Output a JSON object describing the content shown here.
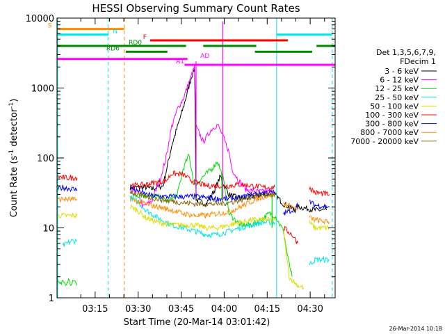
{
  "chart_data": {
    "type": "line",
    "title": "HESSI Observing Summary Count Rates",
    "xlabel": "Start Time (20-Mar-14 03:01:42)",
    "ylabel_main": "Count Rate (s",
    "ylabel_sup1": "-1",
    "ylabel_mid": " detector",
    "ylabel_sup2": "-1",
    "ylabel_end": ")",
    "yscale": "log",
    "ylim": [
      1,
      10000
    ],
    "xlim_minutes": [
      0,
      97
    ],
    "x_ticks": [
      {
        "t": 13.3,
        "label": "03:15"
      },
      {
        "t": 28.3,
        "label": "03:30"
      },
      {
        "t": 43.3,
        "label": "03:45"
      },
      {
        "t": 58.3,
        "label": "04:00"
      },
      {
        "t": 73.3,
        "label": "04:15"
      },
      {
        "t": 88.3,
        "label": "04:30"
      }
    ],
    "y_ticks": [
      {
        "v": 1,
        "label": "1"
      },
      {
        "v": 10,
        "label": "10"
      },
      {
        "v": 100,
        "label": "100"
      },
      {
        "v": 1000,
        "label": "1000"
      },
      {
        "v": 10000,
        "label": "10000"
      }
    ],
    "legend": {
      "header1": "Det 1,3,5,6,7,9,",
      "header2": "FDecim 1",
      "entries": [
        {
          "label": "3 - 6 keV",
          "color": "#000000"
        },
        {
          "label": "6 - 12 keV",
          "color": "#ff00ff"
        },
        {
          "label": "12 - 25 keV",
          "color": "#00dd00"
        },
        {
          "label": "25 - 50 keV",
          "color": "#00e5e5"
        },
        {
          "label": "50 - 100 keV",
          "color": "#dddd00"
        },
        {
          "label": "100 - 300 keV",
          "color": "#ff0000"
        },
        {
          "label": "300 - 800 keV",
          "color": "#0000ff"
        },
        {
          "label": "800 - 7000 keV",
          "color": "#ff8c00"
        },
        {
          "label": "7000 - 20000 keV",
          "color": "#8b6914"
        }
      ]
    },
    "series": [
      {
        "name": "3 - 6 keV",
        "color": "#000000",
        "segments": [
          [
            [
              25.5,
              38
            ],
            [
              31,
              38
            ],
            [
              33,
              36
            ],
            [
              37,
              40
            ],
            [
              40,
              150
            ],
            [
              44,
              520
            ],
            [
              47,
              1500
            ],
            [
              48,
              1900
            ],
            [
              48.5,
              25
            ],
            [
              52,
              22
            ],
            [
              55,
              35
            ],
            [
              57,
              55
            ],
            [
              58,
              42
            ],
            [
              60,
              30
            ],
            [
              64,
              26
            ],
            [
              68,
              28
            ],
            [
              72,
              30
            ],
            [
              76,
              30
            ],
            [
              79,
              22
            ],
            [
              83,
              18
            ],
            [
              84,
              20
            ],
            [
              90,
              18
            ],
            [
              94,
              18
            ]
          ]
        ]
      },
      {
        "name": "6 - 12 keV",
        "color": "#ff00ff",
        "segments": [
          [
            [
              25.5,
              33
            ],
            [
              28,
              33
            ],
            [
              30,
              20
            ],
            [
              33,
              24
            ],
            [
              36,
              50
            ],
            [
              38,
              100
            ],
            [
              40,
              280
            ],
            [
              42,
              500
            ],
            [
              44,
              700
            ],
            [
              46,
              1200
            ],
            [
              48,
              2000
            ],
            [
              48.5,
              280
            ],
            [
              51,
              170
            ],
            [
              54,
              260
            ],
            [
              56,
              300
            ],
            [
              58,
              200
            ],
            [
              60,
              120
            ],
            [
              61,
              70
            ],
            [
              63,
              50
            ],
            [
              66,
              35
            ],
            [
              70,
              33
            ],
            [
              74,
              33
            ],
            [
              76,
              32
            ]
          ]
        ]
      },
      {
        "name": "12 - 25 keV",
        "color": "#00dd00",
        "segments": [
          [
            [
              0,
              1.8
            ],
            [
              1,
              1.5
            ],
            [
              2,
              1.8
            ],
            [
              3,
              1.5
            ],
            [
              4,
              1.8
            ],
            [
              5,
              1.5
            ],
            [
              6,
              1.8
            ],
            [
              7,
              1.5
            ]
          ],
          [
            [
              25.5,
              28
            ],
            [
              30,
              30
            ],
            [
              35,
              28
            ],
            [
              39,
              24
            ],
            [
              42,
              30
            ],
            [
              44,
              70
            ],
            [
              46,
              110
            ],
            [
              48,
              40
            ],
            [
              50,
              50
            ],
            [
              54,
              70
            ],
            [
              56,
              90
            ],
            [
              58,
              50
            ],
            [
              60,
              16
            ],
            [
              64,
              11
            ],
            [
              68,
              11
            ],
            [
              71,
              13
            ],
            [
              74,
              16
            ],
            [
              76,
              15
            ],
            [
              79,
              9
            ],
            [
              80,
              5
            ],
            [
              81,
              3
            ],
            [
              82,
              2
            ]
          ]
        ]
      },
      {
        "name": "25 - 50 keV",
        "color": "#00e5e5",
        "segments": [
          [
            [
              2,
              5.5
            ],
            [
              5,
              6.5
            ],
            [
              7,
              6.5
            ]
          ],
          [
            [
              25.5,
              27
            ],
            [
              28,
              24
            ],
            [
              31,
              18
            ],
            [
              35,
              14
            ],
            [
              40,
              11
            ],
            [
              44,
              10
            ],
            [
              48,
              9
            ],
            [
              52,
              8
            ],
            [
              56,
              8
            ],
            [
              60,
              9
            ],
            [
              64,
              10
            ],
            [
              68,
              11
            ],
            [
              72,
              12
            ],
            [
              74,
              12
            ],
            [
              76,
              12
            ]
          ],
          [
            [
              88,
              3
            ],
            [
              90,
              3.5
            ],
            [
              95,
              3.5
            ]
          ]
        ]
      },
      {
        "name": "50 - 100 keV",
        "color": "#dddd00",
        "segments": [
          [
            [
              0,
              15
            ],
            [
              2,
              15
            ],
            [
              7,
              15
            ]
          ],
          [
            [
              25.5,
              20
            ],
            [
              28,
              18
            ],
            [
              31,
              14
            ],
            [
              35,
              12
            ],
            [
              40,
              11
            ],
            [
              44,
              11
            ],
            [
              48,
              11
            ],
            [
              52,
              10
            ],
            [
              56,
              10
            ],
            [
              60,
              11
            ],
            [
              64,
              12
            ],
            [
              68,
              13
            ],
            [
              72,
              13
            ],
            [
              76,
              13
            ]
          ],
          [
            [
              79,
              9
            ],
            [
              80,
              4
            ],
            [
              81,
              2
            ],
            [
              82,
              1.8
            ],
            [
              84,
              1.5
            ],
            [
              86,
              1.4
            ]
          ],
          [
            [
              88,
              12
            ],
            [
              90,
              10
            ],
            [
              95,
              10
            ]
          ]
        ]
      },
      {
        "name": "100 - 300 keV",
        "color": "#ff0000",
        "segments": [
          [
            [
              0,
              55
            ],
            [
              2,
              52
            ],
            [
              7,
              52
            ]
          ],
          [
            [
              25.5,
              42
            ],
            [
              28,
              40
            ],
            [
              31,
              42
            ],
            [
              35,
              45
            ],
            [
              38,
              47
            ],
            [
              40,
              60
            ],
            [
              44,
              58
            ],
            [
              46,
              50
            ],
            [
              48,
              45
            ],
            [
              52,
              40
            ],
            [
              56,
              40
            ],
            [
              60,
              40
            ],
            [
              64,
              42
            ],
            [
              68,
              40
            ],
            [
              72,
              38
            ],
            [
              76,
              38
            ]
          ],
          [
            [
              79,
              10
            ],
            [
              82,
              8
            ],
            [
              84,
              6
            ]
          ],
          [
            [
              88,
              38
            ],
            [
              90,
              32
            ],
            [
              95,
              30
            ]
          ]
        ]
      },
      {
        "name": "300 - 800 keV",
        "color": "#0000ff",
        "segments": [
          [
            [
              0,
              35
            ],
            [
              2,
              38
            ],
            [
              7,
              35
            ]
          ],
          [
            [
              25.5,
              38
            ],
            [
              28,
              34
            ],
            [
              31,
              30
            ],
            [
              35,
              28
            ],
            [
              40,
              28
            ],
            [
              44,
              28
            ],
            [
              48,
              28
            ],
            [
              52,
              27
            ],
            [
              56,
              26
            ],
            [
              60,
              26
            ],
            [
              64,
              27
            ],
            [
              68,
              30
            ],
            [
              72,
              32
            ],
            [
              76,
              32
            ]
          ],
          [
            [
              79,
              16
            ],
            [
              82,
              18
            ],
            [
              84,
              21
            ]
          ],
          [
            [
              88,
              24
            ],
            [
              90,
              21
            ],
            [
              95,
              20
            ]
          ]
        ]
      },
      {
        "name": "800 - 7000 keV",
        "color": "#ff8c00",
        "segments": [
          [
            [
              0,
              25
            ],
            [
              2,
              26
            ],
            [
              7,
              25
            ]
          ],
          [
            [
              25.5,
              26
            ],
            [
              28,
              24
            ],
            [
              31,
              22
            ],
            [
              35,
              20
            ],
            [
              40,
              18
            ],
            [
              44,
              16
            ],
            [
              48,
              15
            ],
            [
              52,
              15
            ],
            [
              56,
              16
            ],
            [
              60,
              17
            ],
            [
              64,
              20
            ],
            [
              68,
              24
            ],
            [
              72,
              28
            ],
            [
              76,
              30
            ]
          ],
          [
            [
              79,
              22
            ],
            [
              82,
              20
            ],
            [
              84,
              18
            ]
          ],
          [
            [
              88,
              14
            ],
            [
              90,
              13
            ],
            [
              95,
              12
            ]
          ]
        ]
      },
      {
        "name": "7000 - 20000 keV",
        "color": "#8b6914",
        "segments": [
          [
            [
              25.5,
              33
            ],
            [
              28,
              30
            ],
            [
              31,
              28
            ],
            [
              35,
              26
            ],
            [
              40,
              24
            ],
            [
              44,
              23
            ],
            [
              48,
              22
            ],
            [
              52,
              22
            ],
            [
              56,
              22
            ],
            [
              60,
              23
            ],
            [
              64,
              25
            ],
            [
              68,
              28
            ],
            [
              72,
              30
            ],
            [
              76,
              30
            ]
          ]
        ]
      }
    ],
    "spikes": [
      {
        "t": 48.5,
        "color": "#ff00ff",
        "from": 30,
        "to": 2400
      },
      {
        "t": 57.8,
        "color": "#ff00ff",
        "from": 25,
        "to": 9000
      },
      {
        "t": 57.5,
        "color": "#00dd00",
        "from": 25,
        "to": 60
      },
      {
        "t": 75,
        "color": "#00dd00",
        "from": 10,
        "to": 30
      }
    ],
    "vlines": [
      {
        "t": 0.2,
        "color": "#00e5e5",
        "dash": false
      },
      {
        "t": 17.8,
        "color": "#00e5e5",
        "dash": true
      },
      {
        "t": 23.5,
        "color": "#ff8c00",
        "dash": true
      },
      {
        "t": 76.6,
        "color": "#00e5e5",
        "dash": false
      },
      {
        "t": 96,
        "color": "#00e5e5",
        "dash": true
      }
    ],
    "flag_bars": [
      {
        "label": "S",
        "color": "#ff8c00",
        "level": 7000,
        "segments": [
          [
            0,
            23.5
          ]
        ],
        "label_t": -3.2
      },
      {
        "label": "N",
        "color": "#00e5e5",
        "level": 5800,
        "segments": [
          [
            0,
            18
          ],
          [
            76.6,
            96
          ]
        ],
        "label_t": 19.5
      },
      {
        "label": "F",
        "color": "#ff0000",
        "level": 4800,
        "segments": [
          [
            32.5,
            80.5
          ]
        ],
        "label_t": 30
      },
      {
        "label": "RD0",
        "color": "#008800",
        "level": 4000,
        "segments": [
          [
            0,
            45
          ],
          [
            51,
            69.5
          ],
          [
            90.5,
            97
          ]
        ],
        "label_t": 25
      },
      {
        "label": "RD6",
        "color": "#008800",
        "level": 3300,
        "segments": [
          [
            24,
            38.5
          ],
          [
            69,
            89
          ]
        ],
        "label_t": 17.2
      },
      {
        "label": "AD",
        "color": "#ff00ff",
        "level": 2600,
        "segments": [
          [
            0,
            45.5
          ]
        ],
        "label_t": 50
      },
      {
        "label": "A1",
        "color": "#ff00ff",
        "level": 2150,
        "segments": [
          [
            44.5,
            97
          ]
        ],
        "label_t": 41.5
      }
    ]
  },
  "timestamp": "26-Mar-2014 10:18"
}
